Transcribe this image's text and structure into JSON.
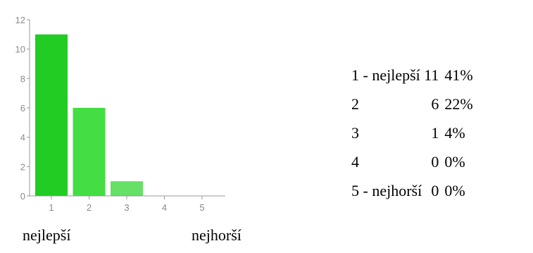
{
  "header": {
    "title": "",
    "title_color": "#4a86e8"
  },
  "chart_data": {
    "type": "bar",
    "categories": [
      "1",
      "2",
      "3",
      "4",
      "5"
    ],
    "values": [
      11,
      6,
      1,
      0,
      0
    ],
    "ylim": [
      0,
      12
    ],
    "yticks": [
      "0",
      "2",
      "4",
      "6",
      "8",
      "10",
      "12"
    ],
    "grid": false,
    "bar_colors": [
      "#22cc22",
      "#44dd44",
      "#66e066",
      "#88ee88",
      "#aaf2aa"
    ]
  },
  "scale_labels": {
    "best": "nejlepší",
    "worst": "nejhorší"
  },
  "summary": {
    "rows": [
      {
        "label": "1 - nejlepší",
        "count": "11",
        "percent": "41%"
      },
      {
        "label": "2",
        "count": "6",
        "percent": "22%"
      },
      {
        "label": "3",
        "count": "1",
        "percent": "4%"
      },
      {
        "label": "4",
        "count": "0",
        "percent": "0%"
      },
      {
        "label": "5 - nejhorší",
        "count": "0",
        "percent": "0%"
      }
    ]
  }
}
